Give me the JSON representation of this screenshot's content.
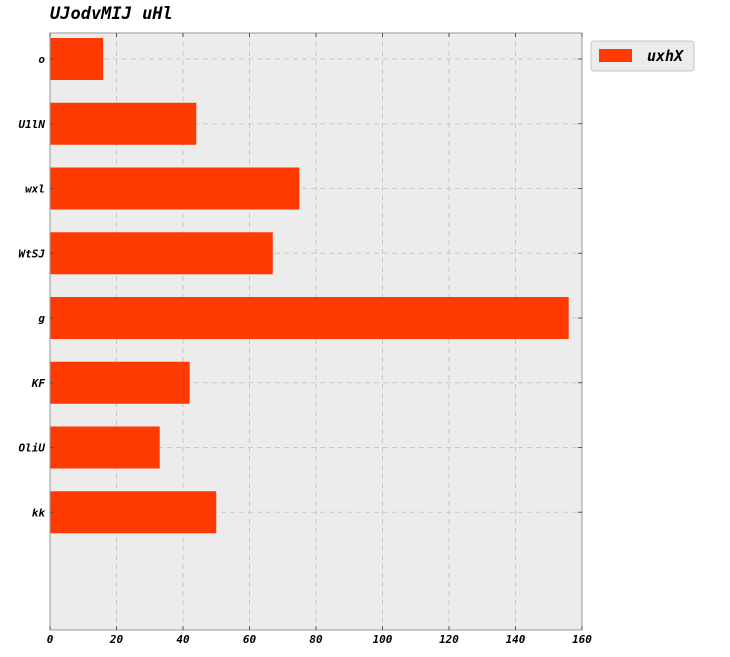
{
  "chart_data": {
    "type": "bar",
    "orientation": "horizontal",
    "title": "UJodvMIJ uHl",
    "xlabel": "",
    "ylabel": "",
    "categories": [
      "o",
      "U1lN",
      "wxl",
      "WtSJ",
      "g",
      "KF",
      "OliU",
      "kk"
    ],
    "series": [
      {
        "name": "uxhX",
        "values": [
          16,
          44,
          75,
          67,
          156,
          42,
          33,
          50
        ]
      }
    ],
    "xlim": [
      0,
      160
    ],
    "xticks": [
      0,
      20,
      40,
      60,
      80,
      100,
      120,
      140,
      160
    ],
    "grid": true,
    "legend": "top-right-outside",
    "colors": {
      "bar": "#ff3a00",
      "plot_background": "#ececec",
      "grid": "#c8c8c8",
      "legend_background": "#ececec"
    }
  }
}
